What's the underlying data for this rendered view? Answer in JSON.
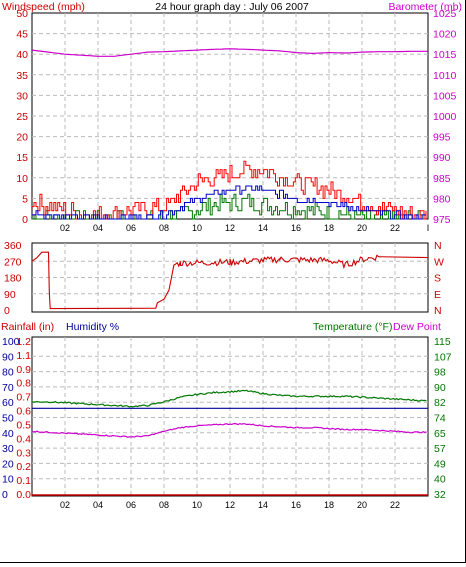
{
  "title": "24 hour graph day : July 06 2007",
  "colors": {
    "wind": "#cc0000",
    "gust": "#ff0000",
    "avgwind": "#0000cc",
    "green": "#007700",
    "baro": "#cc00cc",
    "rain": "#cc0000",
    "humidity": "#000099",
    "temp": "#007700",
    "dew": "#cc00cc",
    "winddir": "#cc0000",
    "grid": "#bbbbbb",
    "axis": "#000000"
  },
  "chart_data": [
    {
      "type": "line",
      "name": "wind-baro",
      "left_label": "Windspeed (mph)",
      "right_label": "Barometer (mb)",
      "x_ticks": [
        "02",
        "04",
        "06",
        "08",
        "10",
        "12",
        "14",
        "16",
        "18",
        "20",
        "22"
      ],
      "x_end_tick": "I",
      "x_range": [
        0,
        24
      ],
      "left_ylim": [
        0,
        50
      ],
      "left_ticks": [
        "0",
        "5",
        "10",
        "15",
        "20",
        "25",
        "30",
        "35",
        "40",
        "45",
        "50"
      ],
      "right_ylim": [
        975,
        1025
      ],
      "right_ticks": [
        "975",
        "980",
        "985",
        "990",
        "995",
        "1000",
        "1005",
        "1010",
        "1015",
        "1020",
        "1025"
      ],
      "grid": true,
      "series": [
        {
          "name": "Barometer",
          "axis": "right",
          "color_key": "baro",
          "x": [
            0,
            2,
            4,
            5,
            6,
            7,
            8,
            9,
            10,
            11,
            12,
            13,
            14,
            15,
            16,
            17,
            18,
            19,
            20,
            21,
            22,
            23,
            24
          ],
          "values": [
            1016,
            1015,
            1014.5,
            1014.5,
            1015,
            1015.5,
            1015.6,
            1015.8,
            1016,
            1016.2,
            1016.3,
            1016.2,
            1016,
            1015.8,
            1015.4,
            1015.2,
            1015.4,
            1015.3,
            1015.5,
            1015.6,
            1015.6,
            1015.7,
            1015.7
          ]
        }
      ],
      "gust_profile": {
        "x": [
          0,
          2,
          4,
          6,
          8,
          9,
          10,
          11,
          12,
          13,
          14,
          15,
          16,
          17,
          18,
          19,
          20,
          21,
          22,
          23,
          24
        ],
        "values": [
          4,
          2,
          1,
          2,
          3,
          6,
          9,
          10,
          11,
          12,
          12,
          10,
          9,
          8,
          7,
          6,
          4,
          3,
          2,
          1,
          1
        ]
      },
      "avg_profile": {
        "x": [
          0,
          2,
          4,
          6,
          8,
          9,
          10,
          11,
          12,
          13,
          14,
          15,
          16,
          17,
          18,
          19,
          20,
          21,
          22,
          23,
          24
        ],
        "values": [
          1.5,
          0.5,
          0.3,
          0.5,
          1,
          3,
          5,
          6,
          7,
          7.5,
          7,
          6,
          5,
          4.5,
          4,
          3,
          2,
          1.5,
          1,
          0.5,
          0.3
        ]
      },
      "green_profile": {
        "x": [
          0,
          2,
          4,
          6,
          8,
          9,
          10,
          11,
          12,
          13,
          14,
          15,
          16,
          17,
          18,
          19,
          20,
          21,
          22,
          24
        ],
        "values": [
          0.5,
          0,
          0,
          0,
          0.2,
          1,
          2.5,
          3.5,
          4,
          4,
          3.5,
          3,
          2.5,
          2,
          1.5,
          1,
          0.5,
          0.2,
          0,
          0
        ]
      }
    },
    {
      "type": "line",
      "name": "wind-direction",
      "left_ticks": [
        "0",
        "90",
        "180",
        "270",
        "360"
      ],
      "right_ticks": [
        "N",
        "E",
        "S",
        "W",
        "N"
      ],
      "ylim": [
        0,
        360
      ],
      "x_range": [
        0,
        24
      ],
      "grid": true,
      "series": [
        {
          "name": "Wind direction",
          "color_key": "winddir",
          "x": [
            0,
            0.3,
            0.6,
            1.0,
            1.05,
            1.1,
            7.5,
            7.6,
            8.0,
            8.3,
            8.6,
            9.0,
            12,
            15,
            18,
            19,
            20,
            21,
            24
          ],
          "values": [
            270,
            290,
            320,
            320,
            100,
            8,
            10,
            40,
            60,
            110,
            250,
            260,
            265,
            280,
            275,
            250,
            280,
            295,
            290
          ],
          "jitter_from": 8.6,
          "jitter_to": 21.5,
          "jitter_amp": 18
        }
      ]
    },
    {
      "type": "line",
      "name": "rain-humidity-temp",
      "left_label_1": "Rainfall (in)",
      "left_label_2": "Humidity %",
      "right_label_1": "Temperature (°F)",
      "right_label_2": "Dew Point",
      "x_ticks": [
        "02",
        "04",
        "06",
        "08",
        "10",
        "12",
        "14",
        "16",
        "18",
        "20",
        "22"
      ],
      "x_range": [
        0,
        24
      ],
      "humidity_ticks": [
        "0",
        "10",
        "20",
        "30",
        "40",
        "50",
        "60",
        "70",
        "80",
        "90",
        "100"
      ],
      "rain_ticks": [
        "0.0",
        "0.1",
        "0.2",
        "0.3",
        "0.4",
        "0.5",
        "0.6",
        "0.7",
        "0.8",
        "0.9",
        "1.1",
        "1.2"
      ],
      "right_ticks": [
        "32",
        "40",
        "49",
        "57",
        "65",
        "74",
        "82",
        "90",
        "98",
        "107",
        "115"
      ],
      "right_ylim": [
        32,
        115
      ],
      "grid": true,
      "series": [
        {
          "name": "Temperature",
          "color_key": "temp",
          "x": [
            0,
            1,
            2,
            3,
            4,
            5,
            6,
            7,
            8,
            9,
            10,
            11,
            12,
            13,
            14,
            15,
            16,
            17,
            18,
            19,
            20,
            21,
            22,
            23,
            24
          ],
          "values": [
            82,
            82,
            81.5,
            81,
            80.5,
            80,
            79.5,
            80,
            82,
            84.5,
            86,
            87,
            87.5,
            88,
            86.5,
            85.5,
            85,
            85,
            85,
            85,
            84.5,
            84,
            83.5,
            83,
            82.5
          ]
        },
        {
          "name": "Dew Point",
          "color_key": "dew",
          "x": [
            0,
            1,
            2,
            3,
            4,
            5,
            6,
            7,
            8,
            9,
            10,
            11,
            12,
            13,
            14,
            15,
            16,
            17,
            18,
            19,
            20,
            21,
            22,
            23,
            24
          ],
          "values": [
            66,
            65.5,
            65,
            64.5,
            64,
            63.5,
            63,
            63.5,
            66,
            68,
            69,
            69.5,
            70,
            70,
            69,
            68.5,
            68,
            68,
            67.5,
            67,
            67,
            66.5,
            66,
            65.5,
            65.5
          ]
        },
        {
          "name": "Humidity",
          "color_key": "humidity",
          "x": [
            0,
            24
          ],
          "values": [
            56,
            56
          ]
        },
        {
          "name": "Rainfall",
          "color_key": "rain",
          "x": [
            0,
            24
          ],
          "values": [
            0,
            0
          ]
        }
      ]
    }
  ]
}
